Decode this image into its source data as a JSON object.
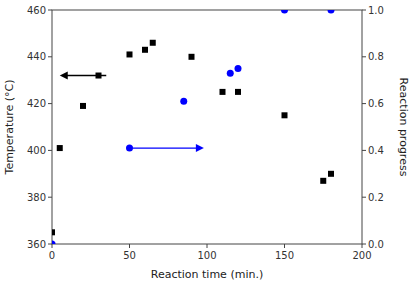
{
  "chart_data": {
    "type": "scatter",
    "xlabel": "Reaction time (min.)",
    "ylabel": "Temperature (°C)",
    "y2label": "Reaction progress",
    "xlim": [
      0,
      200
    ],
    "xticks": [
      0,
      50,
      100,
      150,
      200
    ],
    "ylim": [
      360,
      460
    ],
    "yticks": [
      360,
      380,
      400,
      420,
      440,
      460
    ],
    "y2lim": [
      0.0,
      1.0
    ],
    "y2ticks": [
      {
        "value": 0.0,
        "label": "0.0"
      },
      0.2,
      0.4,
      0.6,
      0.8,
      {
        "value": 1.0,
        "label": "1.0"
      }
    ],
    "grid": false,
    "series": [
      {
        "color": "#000000",
        "marker": "square",
        "x": [
          0,
          5,
          20,
          30,
          50,
          60,
          65,
          90,
          110,
          120,
          150,
          175,
          180
        ],
        "values": [
          365,
          401,
          419,
          432,
          441,
          443,
          446,
          440,
          425,
          425,
          415,
          387,
          390
        ]
      },
      {
        "color": "#0000ff",
        "marker": "circle",
        "axis": "y2",
        "x": [
          0,
          50,
          85,
          115,
          120,
          150,
          180
        ],
        "values": [
          0.0,
          0.41,
          0.61,
          0.73,
          0.75,
          1.0,
          1.0
        ]
      }
    ],
    "arrows": [
      {
        "x_start": 35,
        "x_end": 5,
        "y": 432,
        "color": "black"
      },
      {
        "x_start": 52,
        "x_end": 98,
        "y": 0.41,
        "axis": "y2",
        "color": "blue"
      }
    ]
  }
}
